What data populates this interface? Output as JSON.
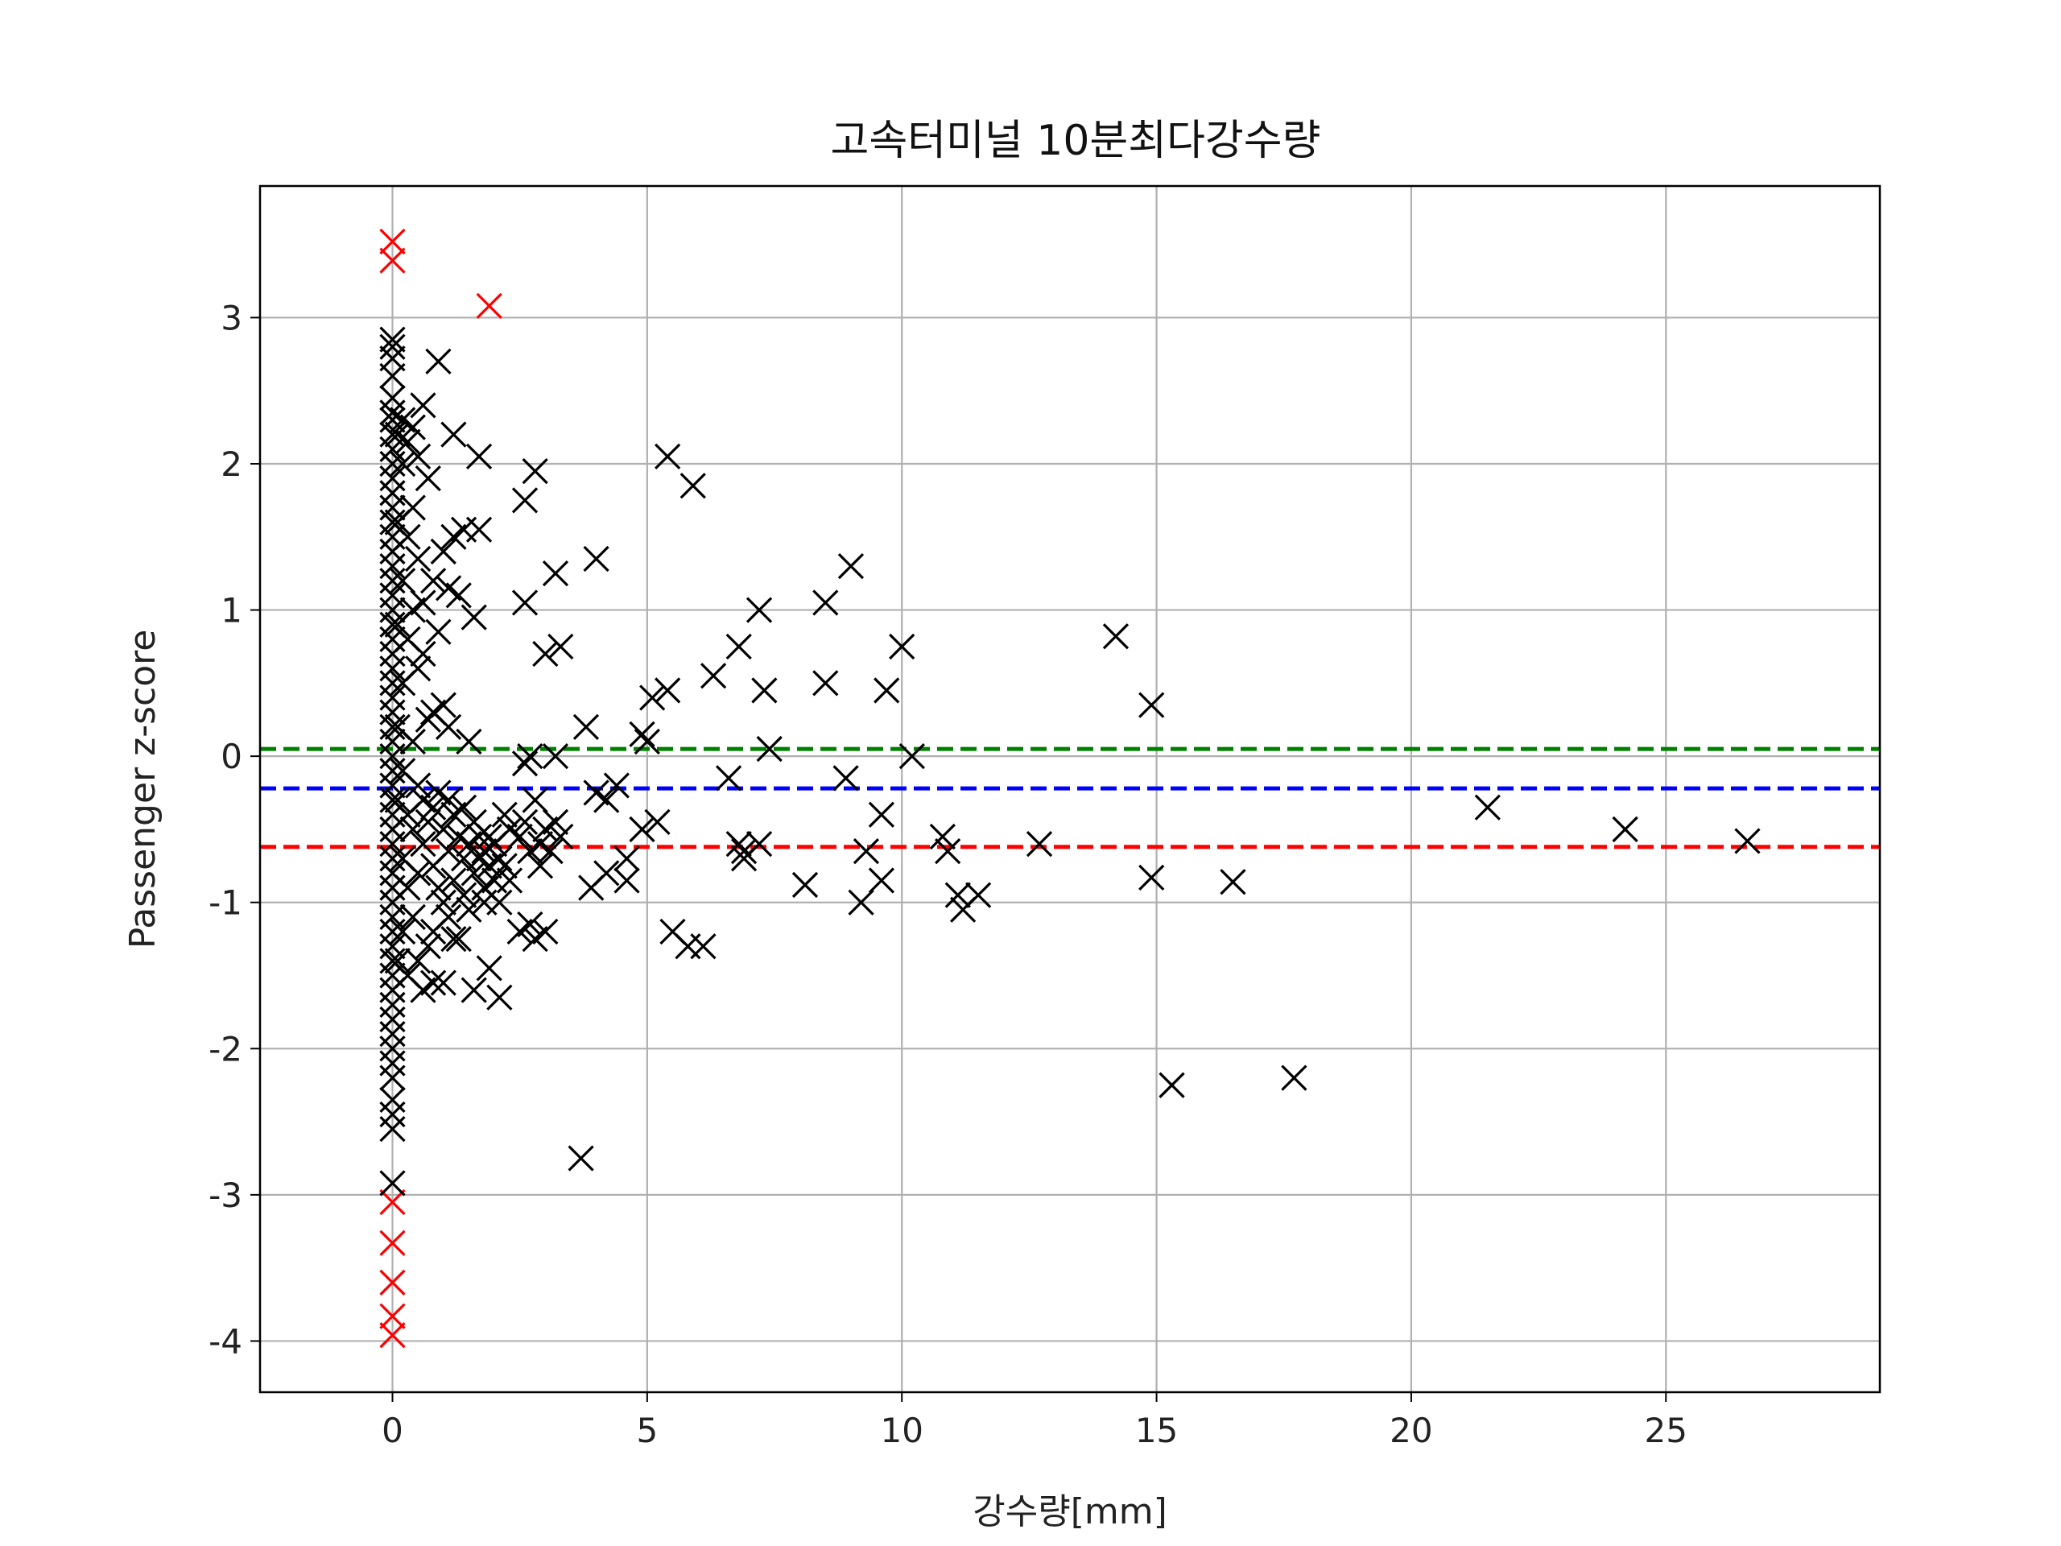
{
  "chart_data": {
    "type": "scatter",
    "title": "고속터미널 10분최다강수량",
    "xlabel": "강수량[mm]",
    "ylabel": "Passenger z-score",
    "xlim": [
      -2.6,
      29.2
    ],
    "ylim": [
      -4.35,
      3.9
    ],
    "xticks": [
      0,
      5,
      10,
      15,
      20,
      25
    ],
    "yticks": [
      -4,
      -3,
      -2,
      -1,
      0,
      1,
      2,
      3
    ],
    "grid": true,
    "legend": "none",
    "marker": "x",
    "colors": {
      "normal": "#000000",
      "outlier": "#ff0000"
    },
    "hlines": [
      {
        "y": 0.05,
        "color": "#008000",
        "style": "dashed"
      },
      {
        "y": -0.22,
        "color": "#0000ff",
        "style": "dashed"
      },
      {
        "y": -0.62,
        "color": "#ff0000",
        "style": "dashed"
      }
    ],
    "series": [
      {
        "color": "#ff0000",
        "points": [
          [
            0,
            3.52
          ],
          [
            0,
            3.39
          ],
          [
            1.9,
            3.08
          ],
          [
            0,
            -3.05
          ],
          [
            0,
            -3.33
          ],
          [
            0,
            -3.6
          ],
          [
            0,
            -3.83
          ],
          [
            0,
            -3.96
          ]
        ]
      },
      {
        "color": "#000000",
        "points": [
          [
            0,
            2.85
          ],
          [
            0,
            2.8
          ],
          [
            0,
            2.72
          ],
          [
            0,
            2.6
          ],
          [
            0,
            2.45
          ],
          [
            0,
            2.35
          ],
          [
            0,
            2.3
          ],
          [
            0,
            2.2
          ],
          [
            0,
            2.1
          ],
          [
            0,
            2.0
          ],
          [
            0,
            1.9
          ],
          [
            0,
            1.8
          ],
          [
            0,
            1.7
          ],
          [
            0,
            1.6
          ],
          [
            0,
            1.5
          ],
          [
            0,
            1.4
          ],
          [
            0,
            1.3
          ],
          [
            0,
            1.2
          ],
          [
            0,
            1.1
          ],
          [
            0,
            1.0
          ],
          [
            0,
            0.9
          ],
          [
            0,
            0.8
          ],
          [
            0,
            0.7
          ],
          [
            0,
            0.6
          ],
          [
            0,
            0.5
          ],
          [
            0,
            0.4
          ],
          [
            0,
            0.3
          ],
          [
            0,
            0.2
          ],
          [
            0,
            0.1
          ],
          [
            0,
            0.0
          ],
          [
            0,
            -0.1
          ],
          [
            0,
            -0.2
          ],
          [
            0,
            -0.3
          ],
          [
            0,
            -0.4
          ],
          [
            0,
            -0.5
          ],
          [
            0,
            -0.6
          ],
          [
            0,
            -0.7
          ],
          [
            0,
            -0.8
          ],
          [
            0,
            -0.9
          ],
          [
            0,
            -1.0
          ],
          [
            0,
            -1.1
          ],
          [
            0,
            -1.2
          ],
          [
            0,
            -1.3
          ],
          [
            0,
            -1.4
          ],
          [
            0,
            -1.5
          ],
          [
            0,
            -1.6
          ],
          [
            0,
            -1.7
          ],
          [
            0,
            -1.8
          ],
          [
            0,
            -1.9
          ],
          [
            0,
            -2.0
          ],
          [
            0,
            -2.1
          ],
          [
            0,
            -2.2
          ],
          [
            0,
            -2.35
          ],
          [
            0,
            -2.45
          ],
          [
            0,
            -2.55
          ],
          [
            0,
            -2.92
          ],
          [
            0.1,
            2.2
          ],
          [
            0.1,
            1.6
          ],
          [
            0.1,
            0.9
          ],
          [
            0.1,
            0.2
          ],
          [
            0.1,
            -0.3
          ],
          [
            0.1,
            -1.4
          ],
          [
            0.2,
            2.3
          ],
          [
            0.2,
            2.0
          ],
          [
            0.2,
            1.2
          ],
          [
            0.2,
            0.5
          ],
          [
            0.2,
            -0.1
          ],
          [
            0.2,
            -0.7
          ],
          [
            0.2,
            -1.2
          ],
          [
            0.3,
            2.15
          ],
          [
            0.3,
            1.5
          ],
          [
            0.3,
            0.8
          ],
          [
            0.3,
            -0.4
          ],
          [
            0.3,
            -0.9
          ],
          [
            0.3,
            -1.5
          ],
          [
            0.4,
            2.25
          ],
          [
            0.4,
            1.7
          ],
          [
            0.4,
            1.0
          ],
          [
            0.4,
            0.1
          ],
          [
            0.4,
            -0.5
          ],
          [
            0.4,
            -1.1
          ],
          [
            0.5,
            2.05
          ],
          [
            0.5,
            1.35
          ],
          [
            0.5,
            0.6
          ],
          [
            0.5,
            -0.2
          ],
          [
            0.5,
            -0.8
          ],
          [
            0.5,
            -1.4
          ],
          [
            0.6,
            2.4
          ],
          [
            0.6,
            1.05
          ],
          [
            0.6,
            0.7
          ],
          [
            0.6,
            -0.3
          ],
          [
            0.6,
            -0.6
          ],
          [
            0.6,
            -1.6
          ],
          [
            0.7,
            1.9
          ],
          [
            0.7,
            0.25
          ],
          [
            0.7,
            -0.45
          ],
          [
            0.7,
            -1.3
          ],
          [
            0.8,
            1.2
          ],
          [
            0.8,
            0.3
          ],
          [
            0.8,
            -0.35
          ],
          [
            0.8,
            -0.75
          ],
          [
            0.8,
            -1.2
          ],
          [
            0.8,
            -1.55
          ],
          [
            0.9,
            2.7
          ],
          [
            0.9,
            0.85
          ],
          [
            0.9,
            -0.25
          ],
          [
            0.9,
            -0.9
          ],
          [
            1.0,
            1.4
          ],
          [
            1.0,
            0.35
          ],
          [
            1.0,
            -0.5
          ],
          [
            1.0,
            -1.0
          ],
          [
            1.0,
            -1.55
          ],
          [
            1.1,
            1.15
          ],
          [
            1.1,
            0.2
          ],
          [
            1.1,
            -0.3
          ],
          [
            1.1,
            -0.65
          ],
          [
            1.1,
            -1.1
          ],
          [
            1.2,
            2.2
          ],
          [
            1.2,
            1.5
          ],
          [
            1.2,
            -0.4
          ],
          [
            1.2,
            -0.85
          ],
          [
            1.2,
            -1.25
          ],
          [
            1.3,
            1.1
          ],
          [
            1.3,
            -0.55
          ],
          [
            1.3,
            -1.25
          ],
          [
            1.4,
            1.55
          ],
          [
            1.4,
            -0.35
          ],
          [
            1.4,
            -0.7
          ],
          [
            1.4,
            -0.95
          ],
          [
            1.5,
            0.1
          ],
          [
            1.5,
            -0.6
          ],
          [
            1.5,
            -1.05
          ],
          [
            1.6,
            0.95
          ],
          [
            1.6,
            -0.45
          ],
          [
            1.6,
            -0.8
          ],
          [
            1.6,
            -1.6
          ],
          [
            1.7,
            2.05
          ],
          [
            1.7,
            1.55
          ],
          [
            1.7,
            -0.55
          ],
          [
            1.7,
            -0.7
          ],
          [
            1.8,
            -0.65
          ],
          [
            1.8,
            -0.9
          ],
          [
            1.8,
            -1.0
          ],
          [
            1.9,
            -0.55
          ],
          [
            1.9,
            -0.75
          ],
          [
            1.9,
            -1.45
          ],
          [
            2.0,
            -0.6
          ],
          [
            2.0,
            -0.85
          ],
          [
            2.1,
            -0.7
          ],
          [
            2.1,
            -1.0
          ],
          [
            2.1,
            -1.65
          ],
          [
            2.2,
            -0.75
          ],
          [
            2.2,
            -0.4
          ],
          [
            2.3,
            -0.5
          ],
          [
            2.3,
            -0.85
          ],
          [
            2.5,
            -0.55
          ],
          [
            2.5,
            -1.2
          ],
          [
            2.6,
            1.75
          ],
          [
            2.6,
            1.05
          ],
          [
            2.6,
            -0.05
          ],
          [
            2.6,
            -0.45
          ],
          [
            2.7,
            0.0
          ],
          [
            2.7,
            -0.65
          ],
          [
            2.7,
            -1.15
          ],
          [
            2.8,
            1.95
          ],
          [
            2.8,
            -0.3
          ],
          [
            2.8,
            -1.25
          ],
          [
            2.9,
            -0.6
          ],
          [
            2.9,
            -0.75
          ],
          [
            3.0,
            0.7
          ],
          [
            3.0,
            -0.5
          ],
          [
            3.0,
            -1.2
          ],
          [
            3.1,
            -0.65
          ],
          [
            3.2,
            1.25
          ],
          [
            3.2,
            0.0
          ],
          [
            3.2,
            -0.45
          ],
          [
            3.3,
            0.75
          ],
          [
            3.3,
            -0.55
          ],
          [
            3.7,
            -2.75
          ],
          [
            3.8,
            0.2
          ],
          [
            3.9,
            -0.9
          ],
          [
            4.0,
            1.35
          ],
          [
            4.0,
            -0.25
          ],
          [
            4.2,
            -0.8
          ],
          [
            4.2,
            -0.3
          ],
          [
            4.4,
            -0.2
          ],
          [
            4.6,
            -0.7
          ],
          [
            4.6,
            -0.85
          ],
          [
            4.9,
            -0.5
          ],
          [
            4.9,
            0.15
          ],
          [
            5.0,
            0.1
          ],
          [
            5.1,
            0.4
          ],
          [
            5.2,
            -0.45
          ],
          [
            5.4,
            2.05
          ],
          [
            5.4,
            0.45
          ],
          [
            5.5,
            -1.2
          ],
          [
            5.8,
            -1.3
          ],
          [
            5.9,
            1.85
          ],
          [
            6.1,
            -1.3
          ],
          [
            6.3,
            0.55
          ],
          [
            6.6,
            -0.15
          ],
          [
            6.8,
            0.75
          ],
          [
            6.8,
            -0.6
          ],
          [
            6.9,
            -0.7
          ],
          [
            6.9,
            -0.65
          ],
          [
            7.2,
            1.0
          ],
          [
            7.2,
            -0.6
          ],
          [
            7.3,
            0.45
          ],
          [
            7.4,
            0.05
          ],
          [
            8.1,
            -0.88
          ],
          [
            8.5,
            1.05
          ],
          [
            8.5,
            0.5
          ],
          [
            8.9,
            -0.15
          ],
          [
            9.0,
            1.3
          ],
          [
            9.2,
            -1.0
          ],
          [
            9.3,
            -0.65
          ],
          [
            9.6,
            -0.4
          ],
          [
            9.6,
            -0.85
          ],
          [
            9.7,
            0.45
          ],
          [
            10.0,
            0.75
          ],
          [
            10.2,
            0.0
          ],
          [
            10.8,
            -0.55
          ],
          [
            10.9,
            -0.65
          ],
          [
            11.1,
            -0.95
          ],
          [
            11.2,
            -1.05
          ],
          [
            11.5,
            -0.95
          ],
          [
            12.7,
            -0.6
          ],
          [
            14.2,
            0.82
          ],
          [
            14.9,
            0.35
          ],
          [
            14.9,
            -0.83
          ],
          [
            15.3,
            -2.25
          ],
          [
            16.5,
            -0.86
          ],
          [
            17.7,
            -2.2
          ],
          [
            21.5,
            -0.35
          ],
          [
            24.2,
            -0.5
          ],
          [
            26.6,
            -0.58
          ]
        ]
      }
    ]
  }
}
